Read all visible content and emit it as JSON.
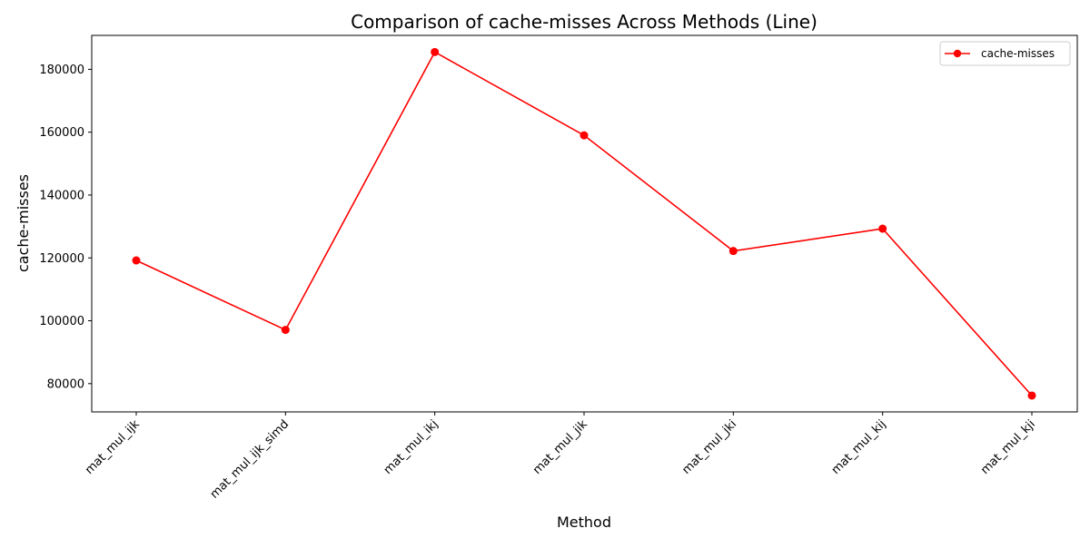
{
  "chart_data": {
    "type": "line",
    "title": "Comparison of cache-misses Across Methods (Line)",
    "xlabel": "Method",
    "ylabel": "cache-misses",
    "categories": [
      "mat_mul_ijk",
      "mat_mul_ijk_simd",
      "mat_mul_ikj",
      "mat_mul_jik",
      "mat_mul_jki",
      "mat_mul_kij",
      "mat_mul_kji"
    ],
    "series": [
      {
        "name": "cache-misses",
        "color": "#ff0000",
        "marker": "circle",
        "values": [
          119200,
          97100,
          185500,
          159000,
          122200,
          129300,
          76200
        ]
      }
    ],
    "ylim": [
      71000,
      190800
    ],
    "yticks": [
      80000,
      100000,
      120000,
      140000,
      160000,
      180000
    ],
    "grid": false,
    "legend": "top-right",
    "xtick_rotation": 45
  }
}
